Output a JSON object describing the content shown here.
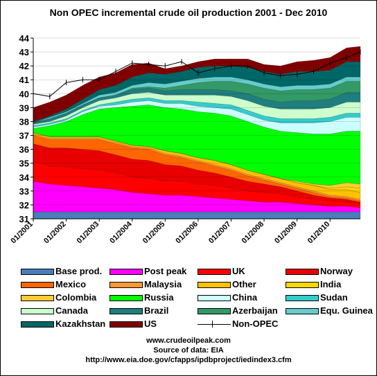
{
  "chart_data": {
    "type": "area",
    "title": "Non OPEC incremental crude oil production 2001 - Dec 2010",
    "xlabel": "",
    "ylabel": "",
    "ylim": [
      31,
      44
    ],
    "yticks": [
      31,
      32,
      33,
      34,
      35,
      36,
      37,
      38,
      39,
      40,
      41,
      42,
      43,
      44
    ],
    "x_tick_labels": [
      "01/2001",
      "01/2002",
      "01/2003",
      "01/2004",
      "01/2005",
      "01/2006",
      "01/2007",
      "01/2008",
      "01/2009",
      "01/2010"
    ],
    "x": [
      2001.0,
      2001.5,
      2002.0,
      2002.5,
      2003.0,
      2003.5,
      2004.0,
      2004.5,
      2005.0,
      2005.5,
      2006.0,
      2006.5,
      2007.0,
      2007.5,
      2008.0,
      2008.5,
      2009.0,
      2009.5,
      2010.0,
      2010.5,
      2010.92
    ],
    "series": [
      {
        "name": "Base prod.",
        "color": "#4a7ebb",
        "values": [
          0.5,
          0.5,
          0.5,
          0.5,
          0.5,
          0.5,
          0.5,
          0.5,
          0.5,
          0.5,
          0.5,
          0.5,
          0.5,
          0.5,
          0.5,
          0.5,
          0.5,
          0.5,
          0.5,
          0.5,
          0.5
        ]
      },
      {
        "name": "Post peak",
        "color": "#ff00ff",
        "values": [
          2.2,
          2.0,
          1.9,
          1.8,
          1.7,
          1.6,
          1.4,
          1.3,
          1.2,
          1.2,
          1.1,
          1.0,
          0.9,
          0.8,
          0.7,
          0.7,
          0.6,
          0.5,
          0.4,
          0.4,
          0.3
        ]
      },
      {
        "name": "UK",
        "color": "#ff0000",
        "values": [
          1.4,
          1.3,
          1.3,
          1.3,
          1.3,
          1.2,
          1.1,
          1.1,
          1.0,
          1.0,
          0.9,
          0.9,
          0.8,
          0.7,
          0.7,
          0.6,
          0.5,
          0.4,
          0.4,
          0.3,
          0.3
        ]
      },
      {
        "name": "Norway",
        "color": "#e80000",
        "values": [
          1.3,
          1.3,
          1.4,
          1.4,
          1.4,
          1.3,
          1.3,
          1.3,
          1.2,
          1.1,
          1.0,
          0.9,
          0.8,
          0.7,
          0.6,
          0.5,
          0.4,
          0.3,
          0.2,
          0.2,
          0.1
        ]
      },
      {
        "name": "Mexico",
        "color": "#ff6600",
        "values": [
          0.6,
          0.6,
          0.6,
          0.7,
          0.8,
          0.8,
          0.8,
          0.8,
          0.7,
          0.6,
          0.6,
          0.5,
          0.5,
          0.4,
          0.3,
          0.2,
          0.2,
          0.2,
          0.1,
          0.1,
          0.1
        ]
      },
      {
        "name": "Malaysia",
        "color": "#ff9933",
        "values": [
          0.1,
          0.1,
          0.1,
          0.1,
          0.1,
          0.1,
          0.1,
          0.1,
          0.1,
          0.1,
          0.1,
          0.1,
          0.1,
          0.1,
          0.1,
          0.1,
          0.1,
          0.1,
          0.1,
          0.1,
          0.1
        ]
      },
      {
        "name": "Other",
        "color": "#ffc000",
        "values": [
          0.1,
          0.1,
          0.1,
          0.1,
          0.1,
          0.1,
          0.1,
          0.1,
          0.2,
          0.2,
          0.2,
          0.3,
          0.3,
          0.3,
          0.3,
          0.3,
          0.3,
          0.4,
          0.4,
          0.5,
          0.5
        ]
      },
      {
        "name": "India",
        "color": "#ffd700",
        "values": [
          0.0,
          0.0,
          0.0,
          0.0,
          0.0,
          0.0,
          0.0,
          0.0,
          0.0,
          0.0,
          0.0,
          0.0,
          0.0,
          0.0,
          0.0,
          0.0,
          0.0,
          0.0,
          0.1,
          0.2,
          0.3
        ]
      },
      {
        "name": "Colombia",
        "color": "#ffcc33",
        "values": [
          0.0,
          0.0,
          0.0,
          0.0,
          0.0,
          0.0,
          0.0,
          0.0,
          0.0,
          0.0,
          0.0,
          0.0,
          0.0,
          0.0,
          0.0,
          0.0,
          0.1,
          0.1,
          0.2,
          0.3,
          0.3
        ]
      },
      {
        "name": "Russia",
        "color": "#00ff00",
        "values": [
          0.3,
          0.8,
          1.1,
          1.6,
          2.0,
          2.4,
          2.8,
          3.0,
          3.1,
          3.2,
          3.3,
          3.4,
          3.5,
          3.5,
          3.4,
          3.4,
          3.5,
          3.6,
          3.7,
          3.7,
          3.8
        ]
      },
      {
        "name": "China",
        "color": "#ccffff",
        "values": [
          0.1,
          0.1,
          0.1,
          0.2,
          0.2,
          0.2,
          0.3,
          0.3,
          0.3,
          0.4,
          0.4,
          0.4,
          0.5,
          0.5,
          0.5,
          0.6,
          0.7,
          0.8,
          0.9,
          1.0,
          1.0
        ]
      },
      {
        "name": "Sudan",
        "color": "#33cccc",
        "values": [
          0.1,
          0.1,
          0.1,
          0.1,
          0.1,
          0.2,
          0.2,
          0.2,
          0.2,
          0.2,
          0.3,
          0.3,
          0.3,
          0.3,
          0.3,
          0.3,
          0.3,
          0.3,
          0.3,
          0.3,
          0.3
        ]
      },
      {
        "name": "Canada",
        "color": "#ccffcc",
        "values": [
          0.1,
          0.1,
          0.2,
          0.2,
          0.3,
          0.3,
          0.4,
          0.4,
          0.4,
          0.4,
          0.5,
          0.6,
          0.6,
          0.7,
          0.7,
          0.7,
          0.7,
          0.7,
          0.7,
          0.8,
          0.8
        ]
      },
      {
        "name": "Brazil",
        "color": "#1f7f7f",
        "values": [
          0.1,
          0.2,
          0.2,
          0.2,
          0.2,
          0.2,
          0.3,
          0.3,
          0.3,
          0.4,
          0.4,
          0.4,
          0.4,
          0.5,
          0.5,
          0.5,
          0.6,
          0.6,
          0.6,
          0.7,
          0.7
        ]
      },
      {
        "name": "Azerbaijan",
        "color": "#339966",
        "values": [
          0.0,
          0.0,
          0.0,
          0.0,
          0.0,
          0.0,
          0.1,
          0.1,
          0.2,
          0.3,
          0.5,
          0.6,
          0.7,
          0.7,
          0.8,
          0.8,
          0.8,
          0.8,
          0.8,
          0.8,
          0.8
        ]
      },
      {
        "name": "Equ. Guinea",
        "color": "#66cccc",
        "values": [
          0.0,
          0.1,
          0.1,
          0.1,
          0.2,
          0.2,
          0.2,
          0.3,
          0.3,
          0.3,
          0.3,
          0.3,
          0.3,
          0.3,
          0.3,
          0.3,
          0.3,
          0.3,
          0.3,
          0.3,
          0.3
        ]
      },
      {
        "name": "Kazakhstan",
        "color": "#006666",
        "values": [
          0.1,
          0.1,
          0.2,
          0.3,
          0.4,
          0.5,
          0.6,
          0.7,
          0.7,
          0.7,
          0.8,
          0.8,
          0.8,
          0.9,
          0.9,
          0.9,
          1.0,
          1.0,
          1.0,
          1.1,
          1.1
        ]
      },
      {
        "name": "US",
        "color": "#800000",
        "values": [
          1.0,
          1.0,
          1.0,
          1.0,
          0.9,
          0.9,
          0.9,
          0.7,
          0.4,
          0.4,
          0.4,
          0.5,
          0.5,
          0.6,
          0.5,
          0.6,
          0.7,
          0.8,
          0.9,
          1.0,
          1.1
        ]
      }
    ],
    "line_series": {
      "name": "Non-OPEC",
      "color": "#000000",
      "values": [
        40.0,
        39.8,
        40.8,
        41.0,
        41.0,
        41.6,
        42.2,
        42.1,
        42.0,
        42.3,
        41.5,
        41.8,
        42.0,
        42.0,
        41.5,
        41.3,
        41.4,
        41.6,
        42.2,
        42.6,
        43.0
      ]
    },
    "grid": true,
    "legend": "bottom"
  },
  "legend_items": [
    {
      "label": "Base prod.",
      "color": "#4a7ebb"
    },
    {
      "label": "Post peak",
      "color": "#ff00ff"
    },
    {
      "label": "UK",
      "color": "#ff0000"
    },
    {
      "label": "Norway",
      "color": "#e80000"
    },
    {
      "label": "Mexico",
      "color": "#ff6600"
    },
    {
      "label": "Malaysia",
      "color": "#ff9933"
    },
    {
      "label": "Other",
      "color": "#ffc000"
    },
    {
      "label": "India",
      "color": "#ffd700"
    },
    {
      "label": "Colombia",
      "color": "#ffcc33"
    },
    {
      "label": "Russia",
      "color": "#00ff00"
    },
    {
      "label": "China",
      "color": "#ccffff"
    },
    {
      "label": "Sudan",
      "color": "#33cccc"
    },
    {
      "label": "Canada",
      "color": "#ccffcc"
    },
    {
      "label": "Brazil",
      "color": "#1f7f7f"
    },
    {
      "label": "Azerbaijan",
      "color": "#339966"
    },
    {
      "label": "Equ. Guinea",
      "color": "#66cccc"
    },
    {
      "label": "Kazakhstan",
      "color": "#006666"
    },
    {
      "label": "US",
      "color": "#800000"
    },
    {
      "label": "Non-OPEC",
      "color": "#000000",
      "line": true
    }
  ],
  "source": {
    "website": "www.crudeoilpeak.com",
    "data_label": "Source of data: EIA",
    "url": "http://www.eia.doe.gov/cfapps/ipdbproject/iedindex3.cfm"
  }
}
